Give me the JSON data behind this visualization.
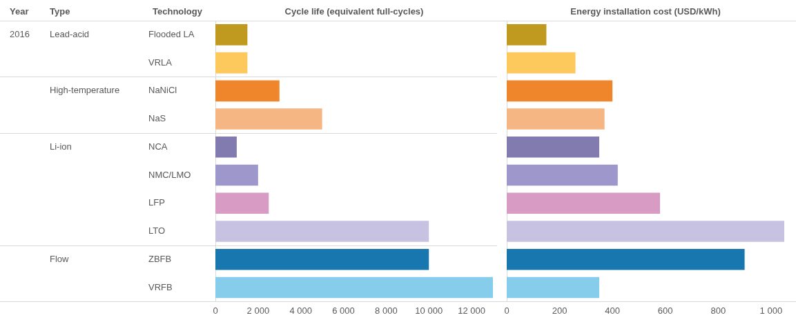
{
  "chart_data": [
    {
      "type": "bar",
      "orientation": "horizontal",
      "title": "Cycle life (equivalent full-cycles)",
      "categories": [
        "Flooded LA",
        "VRLA",
        "NaNiCl",
        "NaS",
        "NCA",
        "NMC/LMO",
        "LFP",
        "LTO",
        "ZBFB",
        "VRFB"
      ],
      "values": [
        1500,
        1500,
        3000,
        5000,
        1000,
        2000,
        2500,
        10000,
        10000,
        13000
      ],
      "colors": [
        "#c09a1e",
        "#fdc95c",
        "#f0862b",
        "#f6b684",
        "#827bb0",
        "#9d97cb",
        "#d89bc4",
        "#c8c2e2",
        "#1877ae",
        "#86cceb"
      ],
      "xlim": [
        0,
        13000
      ],
      "xticks": [
        0,
        {
          "value": 2000,
          "label": "2 000"
        },
        {
          "value": 4000,
          "label": "4 000"
        },
        {
          "value": 6000,
          "label": "6 000"
        },
        {
          "value": 8000,
          "label": "8 000"
        },
        {
          "value": 10000,
          "label": "10 000"
        },
        {
          "value": 12000,
          "label": "12 000"
        }
      ],
      "grid": false,
      "legend": false,
      "annotations": [
        "Year",
        "Type",
        "Technology",
        "2016",
        "Lead-acid",
        "High-temperature",
        "Li-ion",
        "Flow"
      ]
    },
    {
      "type": "bar",
      "orientation": "horizontal",
      "title": "Energy installation cost (USD/kWh)",
      "categories": [
        null,
        null,
        null,
        null,
        null,
        null,
        null,
        null,
        null,
        null
      ],
      "values": [
        150,
        260,
        400,
        370,
        350,
        420,
        580,
        1050,
        900,
        350
      ],
      "colors": [
        "#c09a1e",
        "#fdc95c",
        "#f0862b",
        "#f6b684",
        "#827bb0",
        "#9d97cb",
        "#d89bc4",
        "#c8c2e2",
        "#1877ae",
        "#86cceb"
      ],
      "xlim": [
        0,
        1050
      ],
      "xticks": [
        0,
        200,
        400,
        600,
        800,
        {
          "value": 1000,
          "label": "1 000"
        }
      ],
      "grid": false,
      "legend": false,
      "tick_labels": "x"
    }
  ]
}
